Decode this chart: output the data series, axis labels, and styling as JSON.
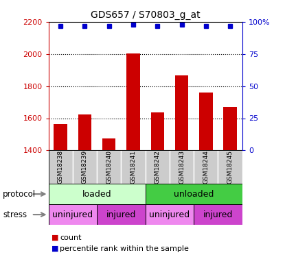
{
  "title": "GDS657 / S70803_g_at",
  "samples": [
    "GSM18238",
    "GSM18239",
    "GSM18240",
    "GSM18241",
    "GSM18242",
    "GSM18243",
    "GSM18244",
    "GSM18245"
  ],
  "counts": [
    1562,
    1625,
    1475,
    2005,
    1635,
    1868,
    1758,
    1670
  ],
  "percentile_ranks": [
    97,
    97,
    97,
    98,
    97,
    98,
    97,
    97
  ],
  "ylim_left": [
    1400,
    2200
  ],
  "ylim_right": [
    0,
    100
  ],
  "right_ticks": [
    0,
    25,
    50,
    75,
    100
  ],
  "right_tick_labels": [
    "0",
    "25",
    "50",
    "75",
    "100%"
  ],
  "left_ticks": [
    1400,
    1600,
    1800,
    2000,
    2200
  ],
  "bar_color": "#cc0000",
  "dot_color": "#0000cc",
  "sample_bg_color": "#cccccc",
  "protocol_groups": [
    {
      "label": "loaded",
      "start": 0,
      "end": 4,
      "color": "#ccffcc"
    },
    {
      "label": "unloaded",
      "start": 4,
      "end": 8,
      "color": "#44cc44"
    }
  ],
  "stress_groups": [
    {
      "label": "uninjured",
      "start": 0,
      "end": 2,
      "color": "#ee88ee"
    },
    {
      "label": "injured",
      "start": 2,
      "end": 4,
      "color": "#cc44cc"
    },
    {
      "label": "uninjured",
      "start": 4,
      "end": 6,
      "color": "#ee88ee"
    },
    {
      "label": "injured",
      "start": 6,
      "end": 8,
      "color": "#cc44cc"
    }
  ],
  "legend_items": [
    {
      "label": "count",
      "color": "#cc0000"
    },
    {
      "label": "percentile rank within the sample",
      "color": "#0000cc"
    }
  ]
}
